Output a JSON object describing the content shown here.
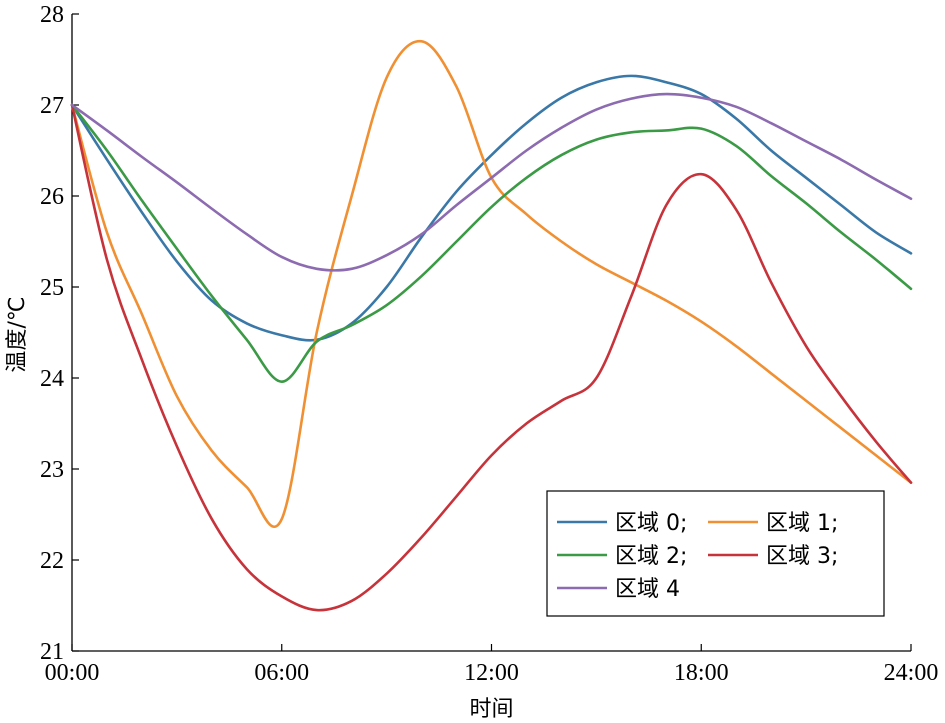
{
  "chart_data": {
    "type": "line",
    "xlabel": "时间",
    "ylabel": "温度/℃",
    "x_ticks": [
      "00:00",
      "06:00",
      "12:00",
      "18:00",
      "24:00"
    ],
    "x_unit": "hours",
    "xlim": [
      0,
      24
    ],
    "ylim": [
      21,
      28
    ],
    "y_ticks": [
      21,
      22,
      23,
      24,
      25,
      26,
      27,
      28
    ],
    "grid": false,
    "legend_position": "bottom-right",
    "series": [
      {
        "name": "区域 0;",
        "color": "#3a78a8",
        "points": [
          [
            0,
            27.0
          ],
          [
            1,
            26.4
          ],
          [
            2,
            25.82
          ],
          [
            3,
            25.28
          ],
          [
            4,
            24.85
          ],
          [
            5,
            24.6
          ],
          [
            6,
            24.47
          ],
          [
            7,
            24.42
          ],
          [
            8,
            24.6
          ],
          [
            9,
            25.0
          ],
          [
            10,
            25.55
          ],
          [
            11,
            26.05
          ],
          [
            12,
            26.45
          ],
          [
            13,
            26.8
          ],
          [
            14,
            27.08
          ],
          [
            15,
            27.25
          ],
          [
            16,
            27.32
          ],
          [
            17,
            27.25
          ],
          [
            18,
            27.12
          ],
          [
            19,
            26.85
          ],
          [
            20,
            26.5
          ],
          [
            21,
            26.2
          ],
          [
            22,
            25.9
          ],
          [
            23,
            25.6
          ],
          [
            24,
            25.37
          ]
        ]
      },
      {
        "name": "区域 1;",
        "color": "#f09033",
        "points": [
          [
            0,
            27.0
          ],
          [
            1,
            25.6
          ],
          [
            2,
            24.7
          ],
          [
            3,
            23.8
          ],
          [
            4,
            23.2
          ],
          [
            5,
            22.8
          ],
          [
            6,
            22.45
          ],
          [
            7,
            24.5
          ],
          [
            8,
            26.0
          ],
          [
            9,
            27.3
          ],
          [
            10,
            27.7
          ],
          [
            11,
            27.2
          ],
          [
            12,
            26.2
          ],
          [
            13,
            25.8
          ],
          [
            14,
            25.5
          ],
          [
            15,
            25.25
          ],
          [
            16,
            25.05
          ],
          [
            17,
            24.85
          ],
          [
            18,
            24.62
          ],
          [
            19,
            24.35
          ],
          [
            20,
            24.05
          ],
          [
            21,
            23.75
          ],
          [
            22,
            23.45
          ],
          [
            23,
            23.15
          ],
          [
            24,
            22.85
          ]
        ]
      },
      {
        "name": "区域 2;",
        "color": "#3b9a45",
        "points": [
          [
            0,
            27.0
          ],
          [
            1,
            26.5
          ],
          [
            2,
            25.95
          ],
          [
            3,
            25.42
          ],
          [
            4,
            24.9
          ],
          [
            5,
            24.42
          ],
          [
            6,
            23.96
          ],
          [
            7,
            24.4
          ],
          [
            8,
            24.58
          ],
          [
            9,
            24.8
          ],
          [
            10,
            25.12
          ],
          [
            11,
            25.5
          ],
          [
            12,
            25.88
          ],
          [
            13,
            26.2
          ],
          [
            14,
            26.45
          ],
          [
            15,
            26.62
          ],
          [
            16,
            26.7
          ],
          [
            17,
            26.72
          ],
          [
            18,
            26.74
          ],
          [
            19,
            26.55
          ],
          [
            20,
            26.22
          ],
          [
            21,
            25.92
          ],
          [
            22,
            25.6
          ],
          [
            23,
            25.3
          ],
          [
            24,
            24.98
          ]
        ]
      },
      {
        "name": "区域 3;",
        "color": "#c7333a",
        "points": [
          [
            0,
            27.0
          ],
          [
            1,
            25.3
          ],
          [
            2,
            24.2
          ],
          [
            3,
            23.25
          ],
          [
            4,
            22.45
          ],
          [
            5,
            21.9
          ],
          [
            6,
            21.6
          ],
          [
            7,
            21.45
          ],
          [
            8,
            21.55
          ],
          [
            9,
            21.85
          ],
          [
            10,
            22.25
          ],
          [
            11,
            22.7
          ],
          [
            12,
            23.15
          ],
          [
            13,
            23.5
          ],
          [
            14,
            23.75
          ],
          [
            15,
            24.0
          ],
          [
            16,
            24.9
          ],
          [
            17,
            25.9
          ],
          [
            18,
            26.24
          ],
          [
            19,
            25.85
          ],
          [
            20,
            25.05
          ],
          [
            21,
            24.35
          ],
          [
            22,
            23.8
          ],
          [
            23,
            23.3
          ],
          [
            24,
            22.85
          ]
        ]
      },
      {
        "name": "区域 4",
        "color": "#8c6bb0",
        "points": [
          [
            0,
            27.0
          ],
          [
            1,
            26.72
          ],
          [
            2,
            26.43
          ],
          [
            3,
            26.15
          ],
          [
            4,
            25.86
          ],
          [
            5,
            25.58
          ],
          [
            6,
            25.33
          ],
          [
            7,
            25.2
          ],
          [
            8,
            25.2
          ],
          [
            9,
            25.35
          ],
          [
            10,
            25.58
          ],
          [
            11,
            25.9
          ],
          [
            12,
            26.2
          ],
          [
            13,
            26.5
          ],
          [
            14,
            26.75
          ],
          [
            15,
            26.95
          ],
          [
            16,
            27.07
          ],
          [
            17,
            27.12
          ],
          [
            18,
            27.08
          ],
          [
            19,
            26.98
          ],
          [
            20,
            26.8
          ],
          [
            21,
            26.6
          ],
          [
            22,
            26.4
          ],
          [
            23,
            26.18
          ],
          [
            24,
            25.97
          ]
        ]
      }
    ]
  }
}
